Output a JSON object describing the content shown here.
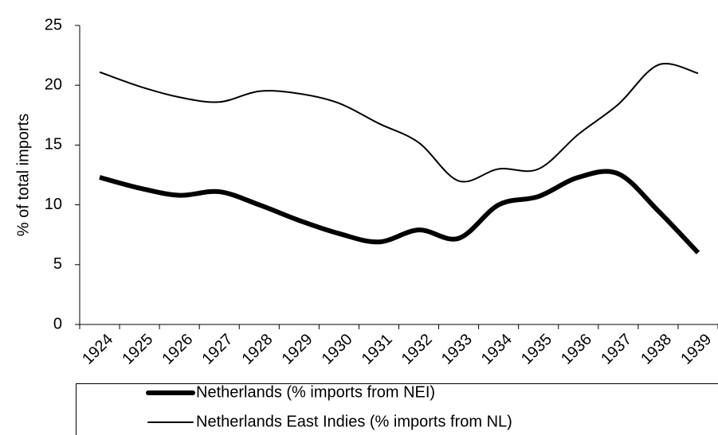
{
  "chart_data": {
    "type": "line",
    "y_label": "% of total imports",
    "categories": [
      "1924",
      "1925",
      "1926",
      "1927",
      "1928",
      "1929",
      "1930",
      "1931",
      "1932",
      "1933",
      "1934",
      "1935",
      "1936",
      "1937",
      "1938",
      "1939"
    ],
    "series": [
      {
        "name": "Netherlands (% imports from NEI)",
        "color": "#000000",
        "stroke_width": 6,
        "values": [
          12.3,
          11.4,
          10.8,
          11.1,
          10.0,
          8.7,
          7.6,
          6.9,
          7.9,
          7.2,
          10.0,
          10.7,
          12.3,
          12.6,
          9.5,
          6.0
        ]
      },
      {
        "name": "Netherlands East Indies (% imports from NL)",
        "color": "#000000",
        "stroke_width": 2,
        "values": [
          21.1,
          19.9,
          19.0,
          18.6,
          19.5,
          19.3,
          18.5,
          16.8,
          15.2,
          12.0,
          13.0,
          13.0,
          15.9,
          18.4,
          21.7,
          21.0
        ]
      }
    ],
    "ylim": [
      0,
      25
    ],
    "yticks": [
      0,
      5,
      10,
      15,
      20,
      25
    ],
    "smooth": true,
    "legend": "bottom"
  }
}
